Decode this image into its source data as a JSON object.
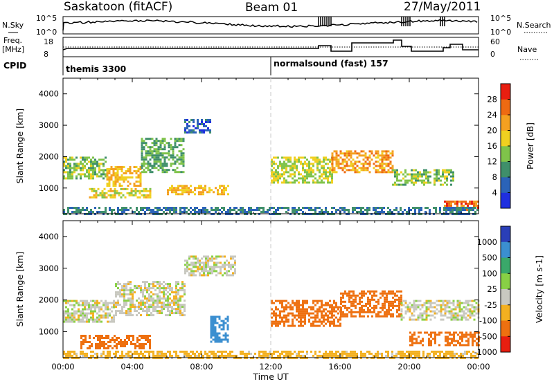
{
  "header": {
    "station": "Saskatoon (fitACF)",
    "beam": "Beam 01",
    "date": "27/May/2011"
  },
  "noise_panel": {
    "left_label": "N.Sky",
    "right_label": "N.Search",
    "left_ticks": [
      "10^5",
      "10^0"
    ],
    "right_ticks": [
      "10^5",
      "10^0"
    ]
  },
  "freq_panel": {
    "left_label_1": "Freq.",
    "left_label_2": "[MHz]",
    "right_label": "Nave",
    "left_ticks": [
      "18",
      "8"
    ],
    "right_ticks": [
      "60",
      "0"
    ]
  },
  "cpid": {
    "label": "CPID",
    "modes": [
      {
        "name": "themis 3300",
        "start_hour": 0
      },
      {
        "name": "normalsound (fast) 157",
        "start_hour": 12
      }
    ]
  },
  "chart_data": [
    {
      "type": "heatmap",
      "name": "power",
      "ylabel": "Slant Range [km]",
      "ylim": [
        180,
        4500
      ],
      "yticks": [
        1000,
        2000,
        3000,
        4000
      ],
      "xlim": [
        0,
        24
      ],
      "colorbar": {
        "label": "Power [dB]",
        "ticks": [
          "4",
          "8",
          "12",
          "16",
          "20",
          "24",
          "28"
        ],
        "colors": [
          "#1f2fe0",
          "#2b63b8",
          "#3f8f6a",
          "#7fc34a",
          "#f0d020",
          "#f4a020",
          "#ee6a12",
          "#e81e10"
        ]
      },
      "bands": [
        {
          "t0": 0.0,
          "t1": 2.5,
          "r0": 1300,
          "r1": 2000,
          "value": 14
        },
        {
          "t0": 2.5,
          "t1": 4.5,
          "r0": 1100,
          "r1": 1700,
          "value": 20
        },
        {
          "t0": 4.5,
          "t1": 7.0,
          "r0": 1500,
          "r1": 2600,
          "value": 12
        },
        {
          "t0": 7.0,
          "t1": 8.5,
          "r0": 2800,
          "r1": 3200,
          "value": 6
        },
        {
          "t0": 1.5,
          "t1": 5.0,
          "r0": 700,
          "r1": 1000,
          "value": 18
        },
        {
          "t0": 6.0,
          "t1": 9.5,
          "r0": 800,
          "r1": 1100,
          "value": 20
        },
        {
          "t0": 12.0,
          "t1": 15.5,
          "r0": 1200,
          "r1": 2000,
          "value": 16
        },
        {
          "t0": 15.5,
          "t1": 19.0,
          "r0": 1500,
          "r1": 2200,
          "value": 22
        },
        {
          "t0": 19.0,
          "t1": 22.5,
          "r0": 1100,
          "r1": 1600,
          "value": 14
        },
        {
          "t0": 22.0,
          "t1": 24.0,
          "r0": 300,
          "r1": 600,
          "value": 26
        },
        {
          "t0": 0.0,
          "t1": 24.0,
          "r0": 200,
          "r1": 400,
          "value": 8
        }
      ]
    },
    {
      "type": "heatmap",
      "name": "velocity",
      "ylabel": "Slant Range [km]",
      "ylim": [
        180,
        4500
      ],
      "yticks": [
        1000,
        2000,
        3000,
        4000
      ],
      "xlim": [
        0,
        24
      ],
      "xticks": [
        "00:00",
        "04:00",
        "08:00",
        "12:00",
        "16:00",
        "20:00",
        "00:00"
      ],
      "xlabel": "Time UT",
      "colorbar": {
        "label": "Velocity [m s-1]",
        "ticks": [
          "1000",
          "500",
          "100",
          "25",
          "-25",
          "-100",
          "-500",
          "-1000"
        ],
        "colors": [
          "#2a3fb8",
          "#3b8fd0",
          "#3aa86a",
          "#88d045",
          "#c8c8c0",
          "#f3b020",
          "#ee7010",
          "#e81e10"
        ]
      },
      "bands": [
        {
          "t0": 0.0,
          "t1": 3.0,
          "r0": 1300,
          "r1": 2000,
          "value": 0
        },
        {
          "t0": 3.0,
          "t1": 7.0,
          "r0": 1500,
          "r1": 2600,
          "value": 0
        },
        {
          "t0": 7.0,
          "t1": 10.0,
          "r0": 2800,
          "r1": 3400,
          "value": 0
        },
        {
          "t0": 1.0,
          "t1": 5.0,
          "r0": 500,
          "r1": 900,
          "value": -150
        },
        {
          "t0": 8.5,
          "t1": 9.5,
          "r0": 700,
          "r1": 1500,
          "value": 800
        },
        {
          "t0": 12.0,
          "t1": 16.0,
          "r0": 1200,
          "r1": 2000,
          "value": -300
        },
        {
          "t0": 16.0,
          "t1": 19.5,
          "r0": 1500,
          "r1": 2300,
          "value": -400
        },
        {
          "t0": 19.5,
          "t1": 24.0,
          "r0": 1400,
          "r1": 2000,
          "value": 0
        },
        {
          "t0": 20.0,
          "t1": 24.0,
          "r0": 600,
          "r1": 1000,
          "value": -450
        },
        {
          "t0": 0.0,
          "t1": 24.0,
          "r0": 200,
          "r1": 400,
          "value": -60
        }
      ]
    }
  ]
}
